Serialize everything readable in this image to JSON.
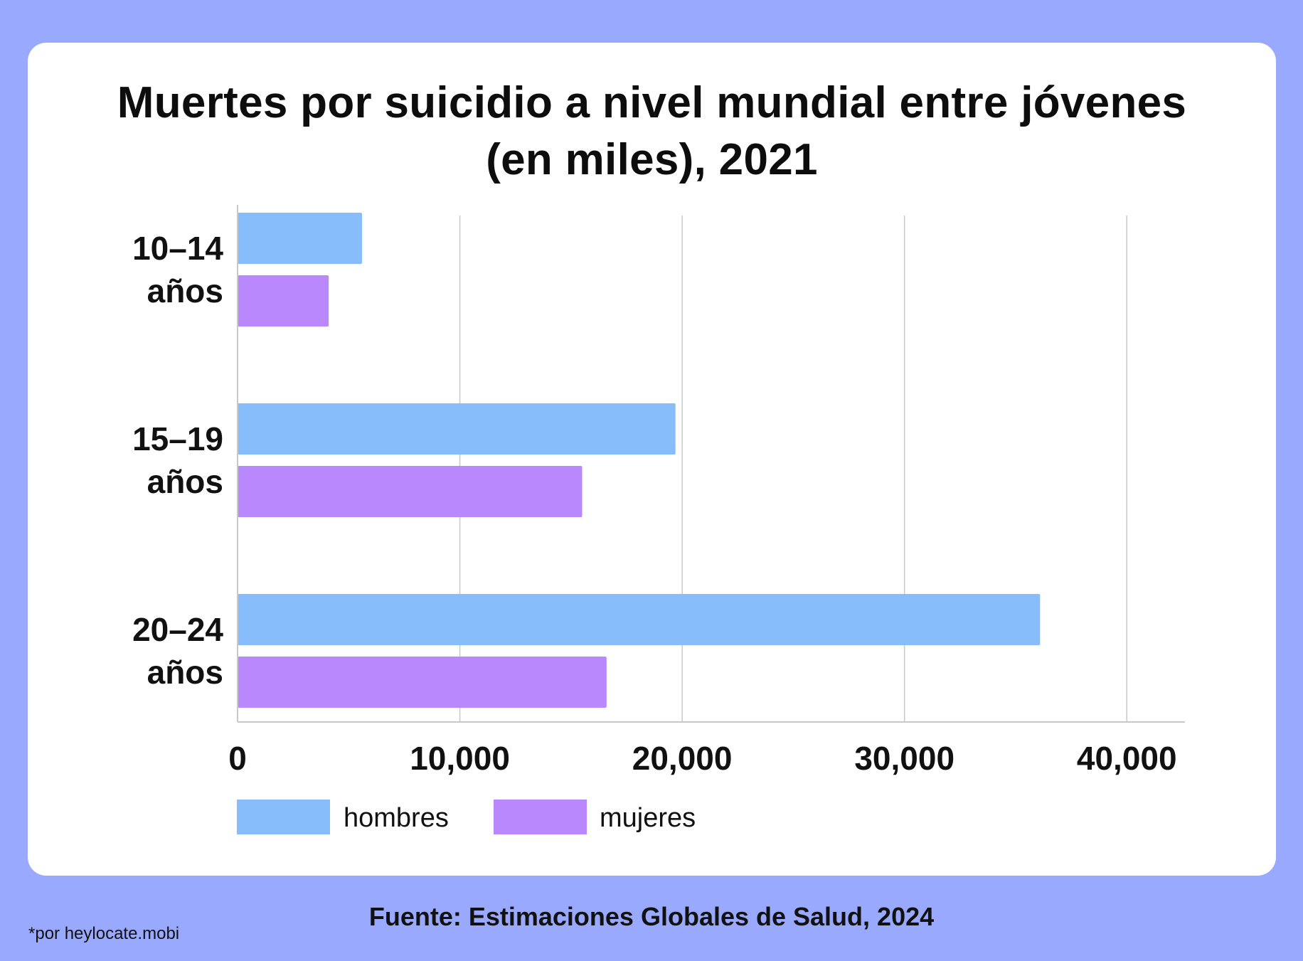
{
  "title_line1": "Muertes por suicidio a nivel mundial entre jóvenes",
  "title_line2": "(en miles), 2021",
  "source": "Fuente: Estimaciones Globales de Salud, 2024",
  "credit": "*por heylocate.mobi",
  "colors": {
    "background": "#99a9fd",
    "card": "#ffffff",
    "hombres": "#88bdfc",
    "mujeres": "#b888fc",
    "grid": "#c8c8c8"
  },
  "chart_data": {
    "type": "bar",
    "orientation": "horizontal",
    "title": "Muertes por suicidio a nivel mundial entre jóvenes (en miles), 2021",
    "categories": [
      [
        "10–14",
        "años"
      ],
      [
        "15–19",
        "años"
      ],
      [
        "20–24",
        "años"
      ]
    ],
    "series": [
      {
        "name": "hombres",
        "values": [
          5600,
          19700,
          36100
        ]
      },
      {
        "name": "mujeres",
        "values": [
          4100,
          15500,
          16600
        ]
      }
    ],
    "xlim": [
      0,
      41000
    ],
    "xticks": [
      0,
      10000,
      20000,
      30000,
      40000
    ],
    "xtick_labels": [
      "0",
      "10,000",
      "20,000",
      "30,000",
      "40,000"
    ],
    "grid": true,
    "legend_position": "bottom-left"
  }
}
